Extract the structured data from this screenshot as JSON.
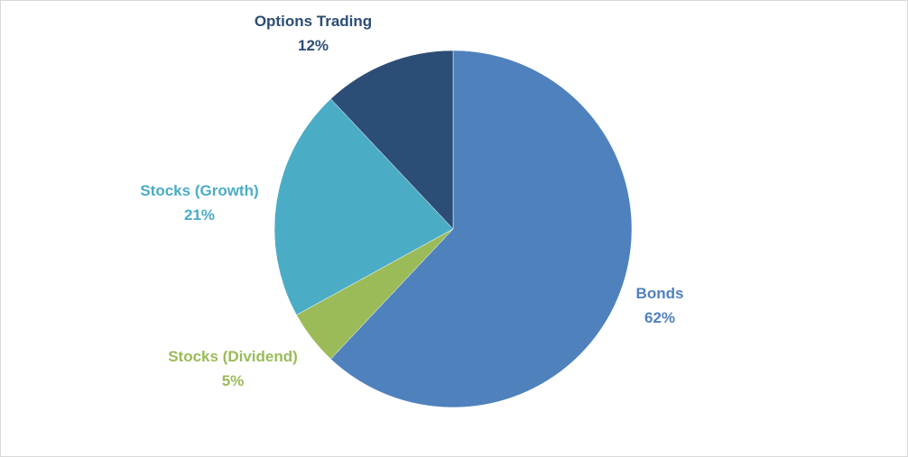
{
  "chart_data": {
    "type": "pie",
    "title": "",
    "slices": [
      {
        "label": "Bonds",
        "value": 62,
        "value_label": "62%",
        "color": "#4f81bd"
      },
      {
        "label": "Stocks (Dividend)",
        "value": 5,
        "value_label": "5%",
        "color": "#9bbb59"
      },
      {
        "label": "Stocks (Growth)",
        "value": 21,
        "value_label": "21%",
        "color": "#4bacc6"
      },
      {
        "label": "Options Trading",
        "value": 12,
        "value_label": "12%",
        "color": "#2c4d75"
      }
    ],
    "start_angle_deg": 0,
    "direction": "clockwise",
    "legend": "none",
    "data_labels": "outside"
  }
}
